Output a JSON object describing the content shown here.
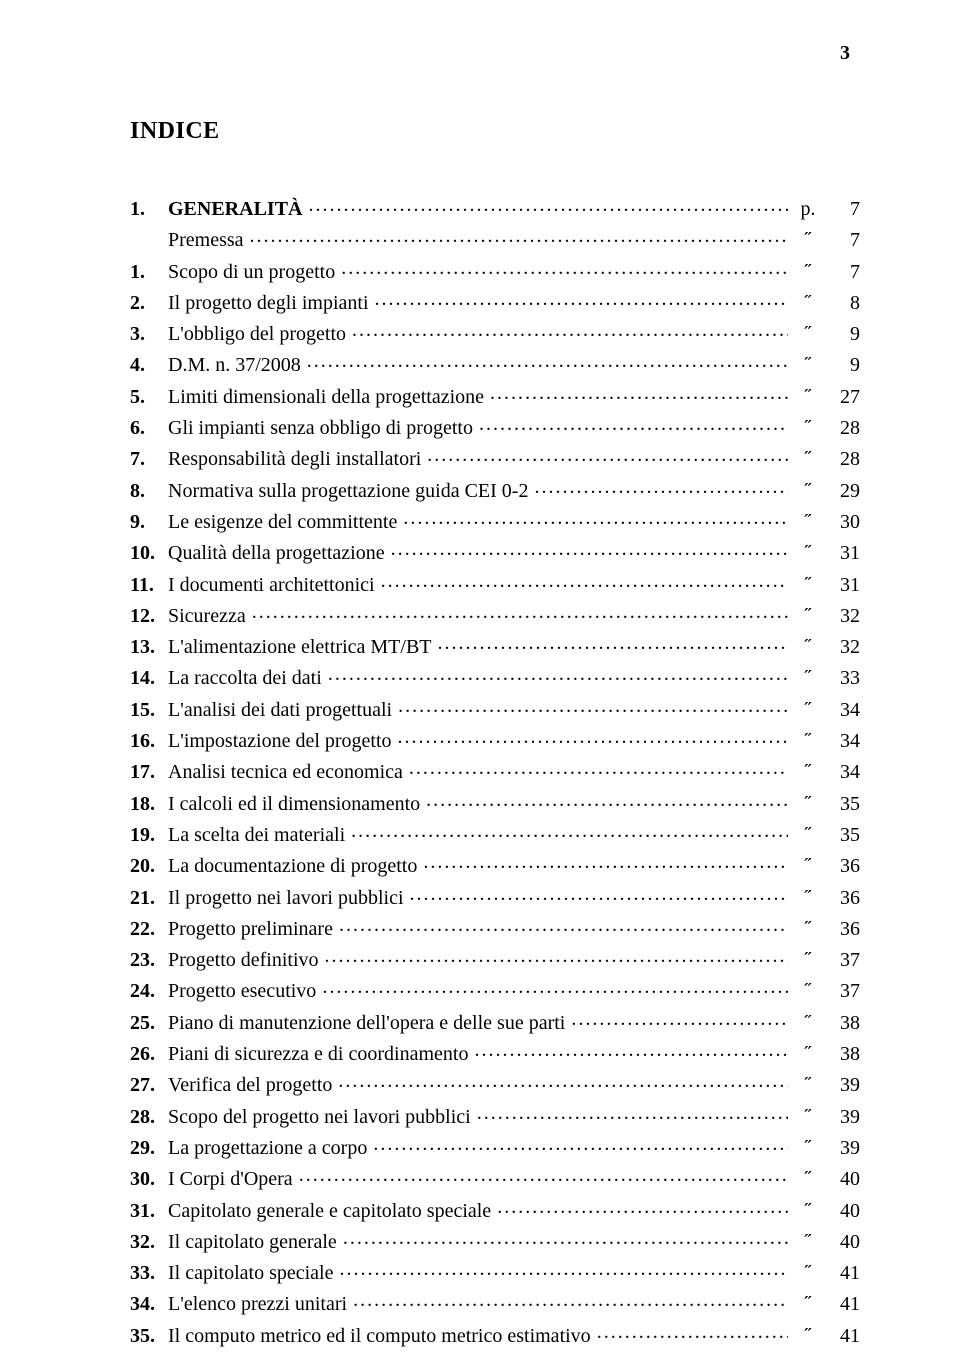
{
  "page_number": "3",
  "title": "INDICE",
  "page_prefix": "p.",
  "ditto": "˝",
  "chapter": {
    "num": "1.",
    "label": "GENERALITÀ",
    "page": "7"
  },
  "premessa": {
    "label": "Premessa",
    "page": "7"
  },
  "entries": [
    {
      "num": "1.",
      "label": "Scopo di un progetto",
      "page": "7"
    },
    {
      "num": "2.",
      "label": "Il progetto degli impianti",
      "page": "8"
    },
    {
      "num": "3.",
      "label": "L'obbligo del progetto",
      "page": "9"
    },
    {
      "num": "4.",
      "label": "D.M. n. 37/2008",
      "page": "9"
    },
    {
      "num": "5.",
      "label": "Limiti dimensionali della progettazione",
      "page": "27"
    },
    {
      "num": "6.",
      "label": "Gli impianti senza obbligo di progetto",
      "page": "28"
    },
    {
      "num": "7.",
      "label": "Responsabilità degli installatori",
      "page": "28"
    },
    {
      "num": "8.",
      "label": "Normativa sulla progettazione guida CEI 0-2",
      "page": "29"
    },
    {
      "num": "9.",
      "label": "Le esigenze del committente",
      "page": "30"
    },
    {
      "num": "10.",
      "label": "Qualità della progettazione",
      "page": "31"
    },
    {
      "num": "11.",
      "label": "I documenti architettonici",
      "page": "31"
    },
    {
      "num": "12.",
      "label": "Sicurezza",
      "page": "32"
    },
    {
      "num": "13.",
      "label": "L'alimentazione elettrica MT/BT",
      "page": "32"
    },
    {
      "num": "14.",
      "label": "La raccolta dei dati",
      "page": "33"
    },
    {
      "num": "15.",
      "label": "L'analisi dei dati progettuali",
      "page": "34"
    },
    {
      "num": "16.",
      "label": "L'impostazione del progetto",
      "page": "34"
    },
    {
      "num": "17.",
      "label": "Analisi tecnica ed economica",
      "page": "34"
    },
    {
      "num": "18.",
      "label": "I calcoli ed il dimensionamento",
      "page": "35"
    },
    {
      "num": "19.",
      "label": "La scelta dei materiali",
      "page": "35"
    },
    {
      "num": "20.",
      "label": "La documentazione di progetto",
      "page": "36"
    },
    {
      "num": "21.",
      "label": "Il progetto nei lavori pubblici",
      "page": "36"
    },
    {
      "num": "22.",
      "label": "Progetto preliminare",
      "page": "36"
    },
    {
      "num": "23.",
      "label": "Progetto definitivo",
      "page": "37"
    },
    {
      "num": "24.",
      "label": "Progetto esecutivo",
      "page": "37"
    },
    {
      "num": "25.",
      "label": "Piano di manutenzione dell'opera e delle sue parti",
      "page": "38"
    },
    {
      "num": "26.",
      "label": "Piani di sicurezza e di coordinamento",
      "page": "38"
    },
    {
      "num": "27.",
      "label": "Verifica del progetto",
      "page": "39"
    },
    {
      "num": "28.",
      "label": "Scopo del progetto nei lavori pubblici",
      "page": "39"
    },
    {
      "num": "29.",
      "label": "La progettazione a corpo",
      "page": "39"
    },
    {
      "num": "30.",
      "label": "I Corpi d'Opera",
      "page": "40"
    },
    {
      "num": "31.",
      "label": "Capitolato generale e capitolato speciale",
      "page": "40"
    },
    {
      "num": "32.",
      "label": "Il capitolato generale",
      "page": "40"
    },
    {
      "num": "33.",
      "label": "Il capitolato speciale",
      "page": "41"
    },
    {
      "num": "34.",
      "label": "L'elenco prezzi unitari",
      "page": "41"
    },
    {
      "num": "35.",
      "label": "Il computo metrico ed il computo metrico estimativo",
      "page": "41"
    }
  ]
}
